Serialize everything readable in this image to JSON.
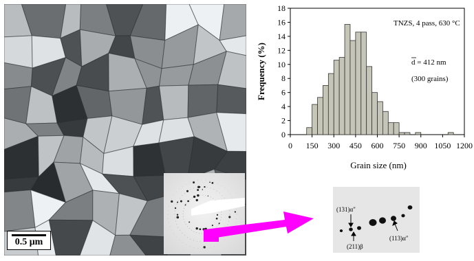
{
  "figure": {
    "scale_bar_label": "0.5 μm",
    "arrow_color": "#ff00ff",
    "zoom_labels": [
      "(131)α″",
      "(211)β",
      "(113)α″"
    ]
  },
  "chart_data": {
    "type": "bar",
    "xlabel": "Grain size (nm)",
    "ylabel": "Frequency (%)",
    "xlim": [
      0,
      1200
    ],
    "ylim": [
      0,
      18
    ],
    "xticks": [
      0,
      150,
      300,
      450,
      600,
      750,
      900,
      1050,
      1200
    ],
    "yticks": [
      0,
      2,
      4,
      6,
      8,
      10,
      12,
      14,
      16,
      18
    ],
    "bar_width_nm": 37.5,
    "bar_color": "#c6c6b8",
    "annotations": [
      "TNZS, 4 pass, 630 °C",
      "d = 412 nm",
      "(300 grains)"
    ],
    "bins_center": [
      131.25,
      168.75,
      206.25,
      243.75,
      281.25,
      318.75,
      356.25,
      393.75,
      431.25,
      468.75,
      506.25,
      543.75,
      581.25,
      618.75,
      656.25,
      693.75,
      731.25,
      768.75,
      806.25,
      881.25,
      1106.25
    ],
    "values": [
      1.0,
      4.3,
      5.3,
      7.0,
      8.7,
      10.6,
      11.0,
      15.7,
      13.4,
      14.6,
      14.6,
      9.7,
      6.0,
      4.7,
      3.3,
      1.7,
      1.7,
      0.3,
      0.3,
      0.3,
      0.3
    ]
  }
}
